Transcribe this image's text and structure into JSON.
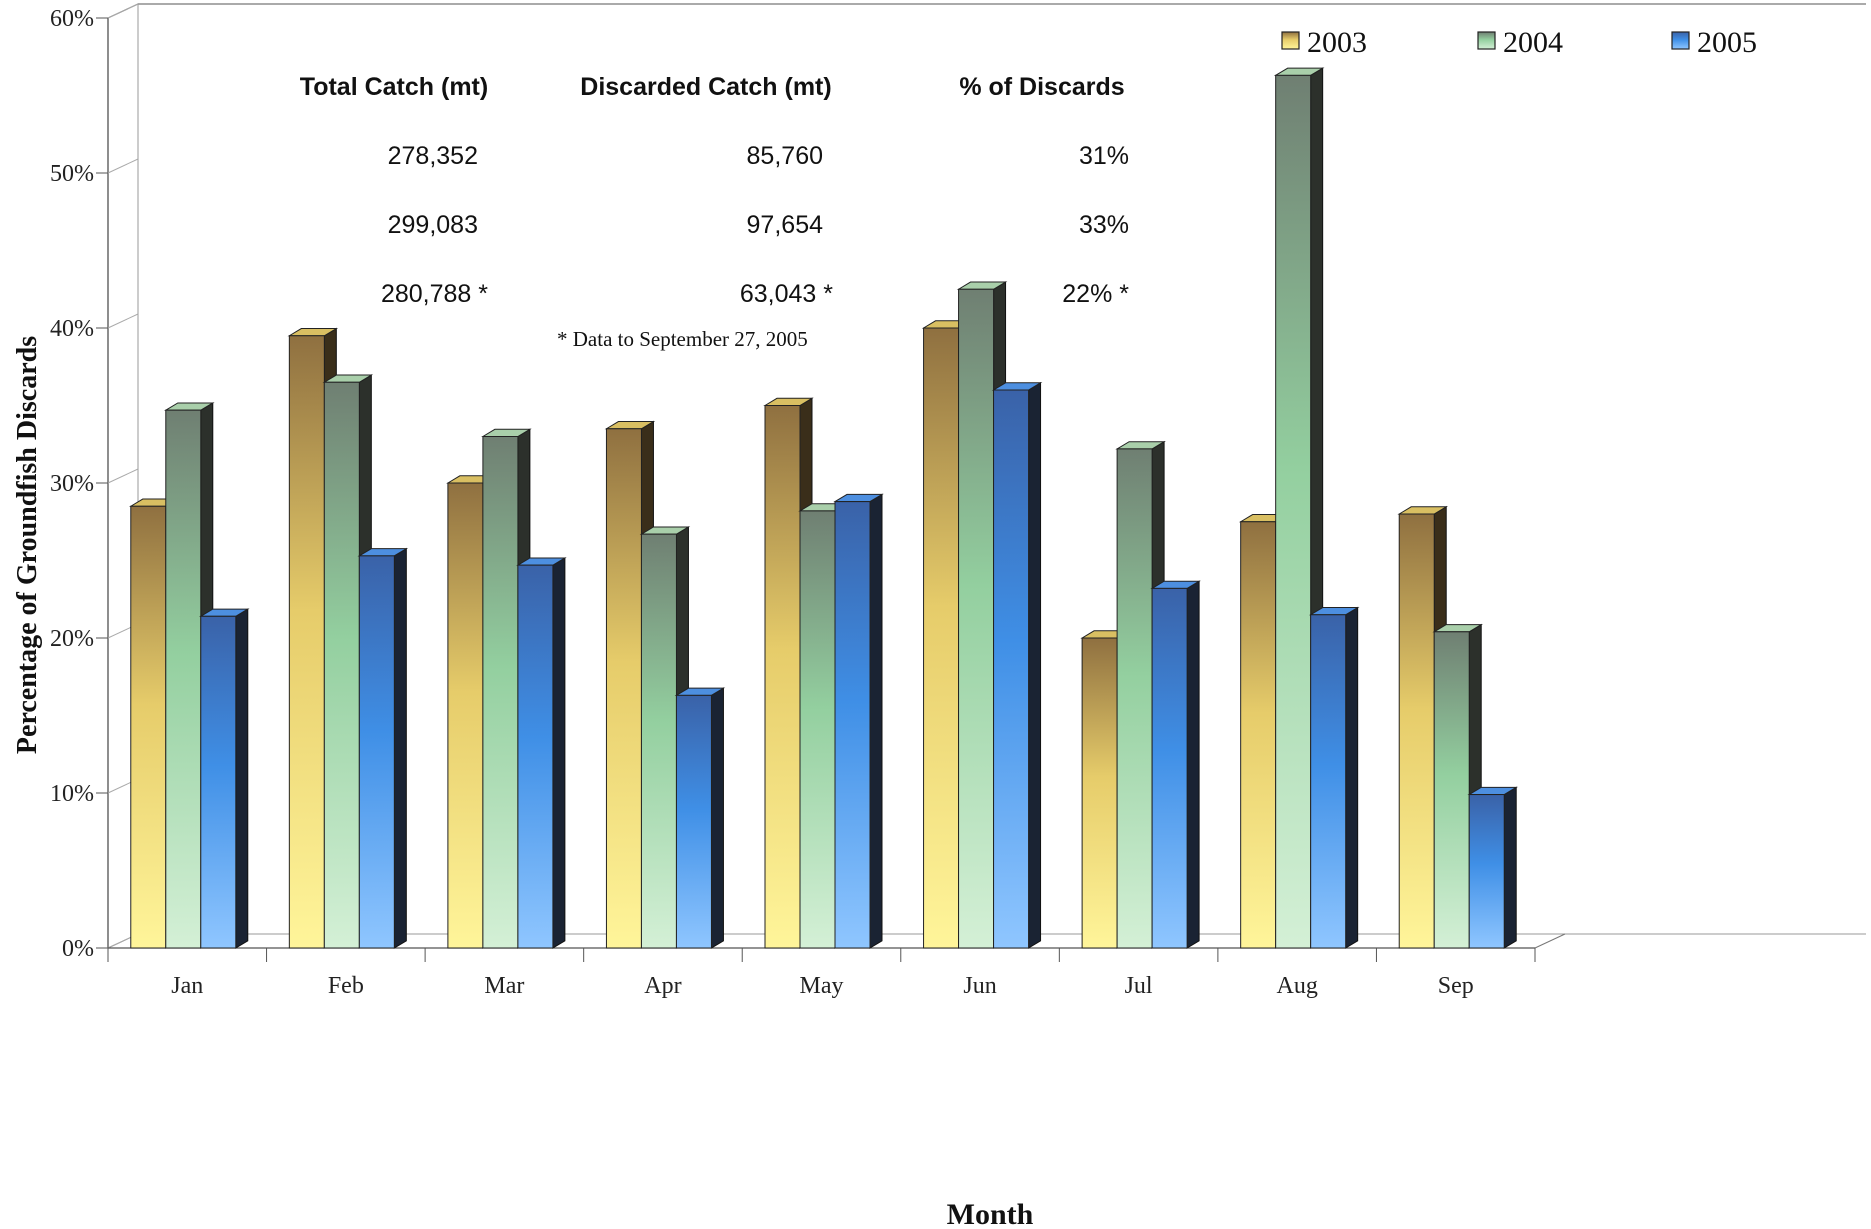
{
  "chart_data": {
    "type": "bar",
    "ylabel": "Percentage of Groundfish Discards",
    "xlabel": "Month",
    "ylim": [
      0,
      60
    ],
    "yticks": [
      "0%",
      "10%",
      "20%",
      "30%",
      "40%",
      "50%",
      "60%"
    ],
    "categories": [
      "Jan",
      "Feb",
      "Mar",
      "Apr",
      "May",
      "Jun",
      "Jul",
      "Aug",
      "Sep"
    ],
    "series": [
      {
        "name": "2003",
        "values": [
          28.5,
          39.5,
          30.0,
          33.5,
          35.0,
          40.0,
          20.0,
          27.5,
          28.0
        ]
      },
      {
        "name": "2004",
        "values": [
          34.7,
          36.5,
          33.0,
          26.7,
          28.2,
          42.5,
          32.2,
          56.3,
          20.4
        ]
      },
      {
        "name": "2005",
        "values": [
          21.4,
          25.3,
          24.7,
          16.3,
          28.8,
          36.0,
          23.2,
          21.5,
          9.9
        ]
      }
    ],
    "colors": {
      "2003": "#e8cc6a",
      "2004": "#9fd4a8",
      "2005": "#4d8fe0"
    },
    "legend_position": "top-right",
    "grid": false,
    "summary_table": {
      "headers": [
        "Total Catch (mt)",
        "Discarded Catch (mt)",
        "% of Discards"
      ],
      "rows": [
        [
          "278,352",
          "85,760",
          "31%"
        ],
        [
          "299,083",
          "97,654",
          "33%"
        ],
        [
          "280,788 *",
          "63,043 *",
          "22% *"
        ]
      ],
      "footnote": "* Data to September 27, 2005"
    }
  }
}
